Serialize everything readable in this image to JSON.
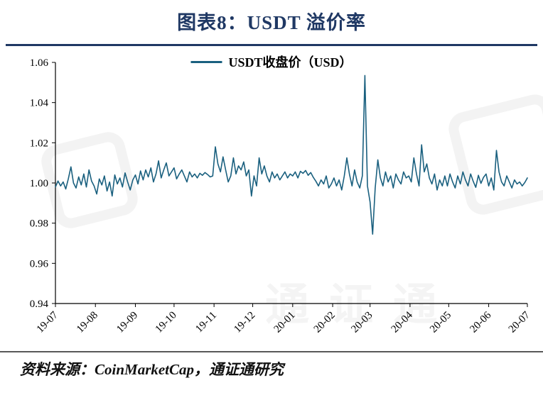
{
  "page": {
    "title": "图表8：USDT 溢价率",
    "source": "资料来源：CoinMarketCap，通证通研究",
    "watermark_text": "通证通"
  },
  "chart": {
    "legend": "USDT收盘价（USD）",
    "line_color": "#1a607f"
  },
  "chart_data": {
    "type": "line",
    "title": "图表8：USDT 溢价率",
    "xlabel": "",
    "ylabel": "",
    "grid": false,
    "legend_position": "top-center",
    "legend": [
      "USDT收盘价（USD）"
    ],
    "ylim": [
      0.94,
      1.06
    ],
    "yticks": [
      0.94,
      0.96,
      0.98,
      1.0,
      1.02,
      1.04,
      1.06
    ],
    "ytick_labels": [
      "0.94",
      "0.96",
      "0.98",
      "1.00",
      "1.02",
      "1.04",
      "1.06"
    ],
    "xtick_labels": [
      "19-07",
      "19-08",
      "19-09",
      "19-10",
      "19-11",
      "19-12",
      "20-01",
      "20-02",
      "20-03",
      "20-04",
      "20-05",
      "20-06",
      "20-07"
    ],
    "xtick_days": [
      0,
      31,
      62,
      92,
      123,
      153,
      184,
      215,
      244,
      275,
      305,
      336,
      366
    ],
    "x_range_days": [
      0,
      366
    ],
    "x_step_days": 2,
    "series": [
      {
        "name": "USDT收盘价（USD）",
        "color": "#1a607f",
        "values": [
          0.998,
          1.001,
          0.9985,
          1.0005,
          0.997,
          1.002,
          1.008,
          1.0,
          0.9975,
          1.003,
          0.999,
          1.0045,
          0.998,
          1.0065,
          1.001,
          0.9985,
          0.9945,
          1.002,
          0.999,
          1.0035,
          0.996,
          1.0005,
          0.9935,
          1.004,
          0.9995,
          1.0025,
          0.998,
          1.005,
          1.0005,
          0.9965,
          1.0015,
          1.004,
          0.9995,
          1.006,
          1.0015,
          1.0065,
          1.003,
          1.0075,
          1.0005,
          1.0045,
          1.011,
          1.0025,
          1.0065,
          1.01,
          1.0035,
          1.0055,
          1.0075,
          1.002,
          1.0045,
          1.0065,
          1.0035,
          1.0005,
          1.0055,
          1.003,
          1.0045,
          1.0025,
          1.0048,
          1.0038,
          1.0052,
          1.0042,
          1.003,
          1.0035,
          1.018,
          1.0095,
          1.0055,
          1.013,
          1.0065,
          1.0005,
          1.0035,
          1.0125,
          1.0045,
          1.0085,
          1.0065,
          1.0105,
          1.0035,
          1.0065,
          0.9935,
          1.0035,
          0.9985,
          1.0125,
          1.0045,
          1.0085,
          1.0035,
          1.0005,
          1.0055,
          1.0025,
          1.0045,
          1.0015,
          1.0035,
          1.0055,
          1.0025,
          1.0045,
          1.0035,
          1.0055,
          1.0025,
          1.0058,
          1.0048,
          1.0062,
          1.0038,
          1.0052,
          1.0028,
          1.0008,
          0.9985,
          1.0015,
          0.9995,
          1.0035,
          0.9975,
          0.9995,
          1.0025,
          0.9985,
          1.0015,
          0.9965,
          1.0035,
          1.0125,
          1.0045,
          0.9985,
          1.0065,
          1.0005,
          0.9975,
          1.0035,
          1.0535,
          0.9985,
          0.9905,
          0.9745,
          0.9975,
          1.0115,
          1.0025,
          0.9985,
          1.0055,
          1.0005,
          1.0035,
          0.9975,
          1.0045,
          1.0015,
          0.9995,
          1.0055,
          1.0025,
          1.0035,
          1.0005,
          1.0125,
          1.0045,
          0.9985,
          1.019,
          1.0055,
          1.0095,
          1.0025,
          0.9995,
          1.0045,
          0.9965,
          1.0015,
          0.9985,
          1.0035,
          0.9985,
          1.0045,
          1.0005,
          0.9975,
          1.0035,
          0.9995,
          1.0055,
          1.0015,
          0.9985,
          1.0045,
          1.0008,
          0.9978,
          1.0038,
          0.9998,
          1.0028,
          1.0045,
          0.9985,
          1.0025,
          0.9965,
          1.0162,
          1.0055,
          1.0005,
          0.9985,
          1.0035,
          1.0005,
          0.9975,
          1.0015,
          0.9995,
          1.0005,
          0.9985,
          1.0002,
          1.0025
        ]
      }
    ]
  }
}
